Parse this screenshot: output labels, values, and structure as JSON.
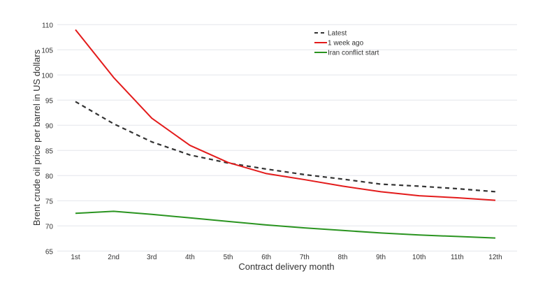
{
  "chart_data": {
    "type": "line",
    "title": "",
    "xlabel": "Contract delivery month",
    "ylabel": "Brent crude oil price per barrel in US dollars",
    "categories": [
      "1st",
      "2nd",
      "3rd",
      "4th",
      "5th",
      "6th",
      "7th",
      "8th",
      "9th",
      "10th",
      "11th",
      "12th"
    ],
    "ylim": [
      65,
      110
    ],
    "yticks": [
      65,
      70,
      75,
      80,
      85,
      90,
      95,
      100,
      105,
      110
    ],
    "grid": true,
    "legend_position": "top-center",
    "series": [
      {
        "name": "Latest",
        "color": "#333333",
        "dash": true,
        "values": [
          94.7,
          90.3,
          86.7,
          84.1,
          82.5,
          81.3,
          80.2,
          79.3,
          78.3,
          77.9,
          77.4,
          76.8
        ]
      },
      {
        "name": "1 week ago",
        "color": "#e31b1b",
        "dash": false,
        "values": [
          109.0,
          99.5,
          91.4,
          86.0,
          82.6,
          80.4,
          79.2,
          77.9,
          76.8,
          76.0,
          75.6,
          75.1
        ]
      },
      {
        "name": "Iran conflict start",
        "color": "#2a9420",
        "dash": false,
        "values": [
          72.5,
          72.9,
          72.3,
          71.6,
          70.9,
          70.2,
          69.6,
          69.1,
          68.6,
          68.2,
          67.9,
          67.6
        ]
      }
    ]
  }
}
